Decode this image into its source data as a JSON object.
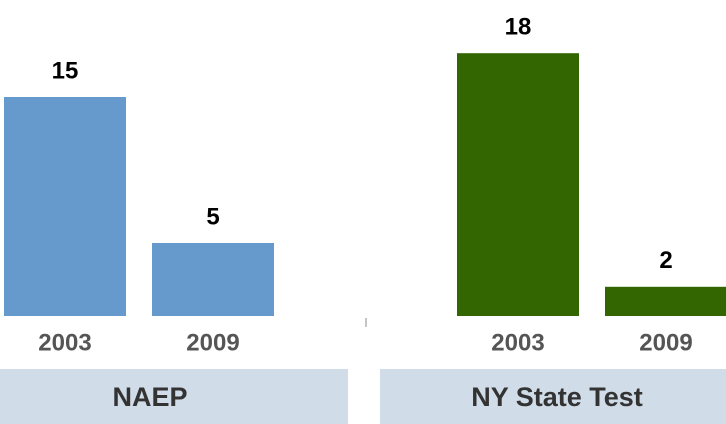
{
  "chart_data": {
    "type": "bar",
    "series": [
      {
        "name": "NAEP",
        "color": "#6699cc",
        "categories": [
          "2003",
          "2009"
        ],
        "values": [
          15,
          5
        ]
      },
      {
        "name": "NY State Test",
        "color": "#336600",
        "categories": [
          "2003",
          "2009"
        ],
        "values": [
          18,
          2
        ]
      }
    ]
  }
}
